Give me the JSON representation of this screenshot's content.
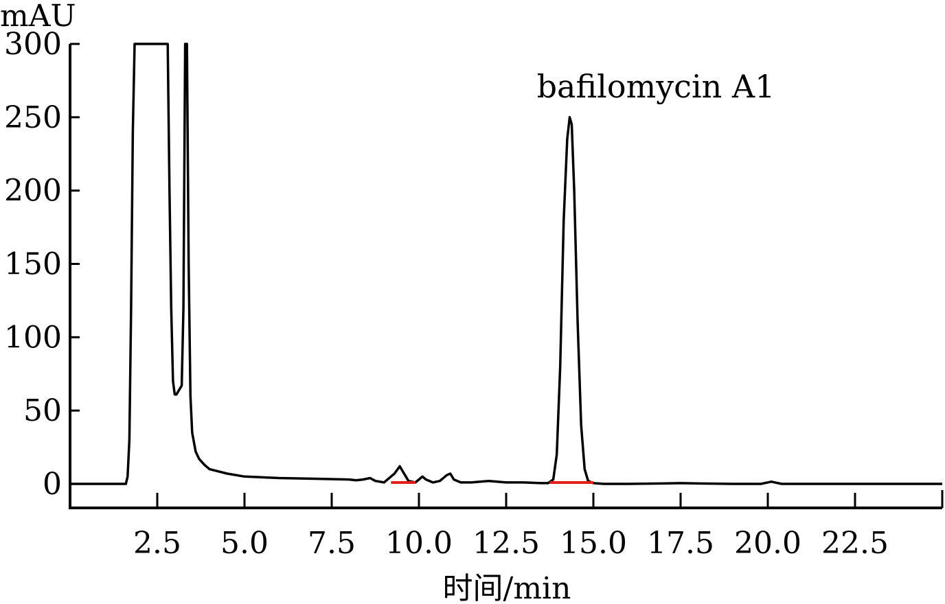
{
  "chart_data": {
    "type": "line",
    "ylabel": "mAU",
    "xlabel": "时间/min",
    "xlim": [
      0,
      25
    ],
    "ylim": [
      -8,
      300
    ],
    "x_ticks": [
      2.5,
      5.0,
      7.5,
      10.0,
      12.5,
      15.0,
      17.5,
      20.0,
      22.5
    ],
    "x_tick_labels": [
      "2.5",
      "5.0",
      "7.5",
      "10.0",
      "12.5",
      "15.0",
      "17.5",
      "20.0",
      "22.5"
    ],
    "y_ticks": [
      0,
      50,
      100,
      150,
      200,
      250,
      300
    ],
    "y_tick_labels": [
      "0",
      "50",
      "100",
      "150",
      "200",
      "250",
      "300"
    ],
    "grid": false,
    "line_color": "#000000",
    "marker_color": "#e0201b",
    "series": [
      {
        "x": [
          0,
          1.6,
          1.65,
          1.7,
          1.75,
          1.8,
          1.85,
          1.9,
          2.8,
          2.85,
          2.9,
          2.95,
          3.0,
          3.05,
          3.1,
          3.15,
          3.2,
          3.25,
          3.3,
          3.35,
          3.4,
          3.45,
          3.5,
          3.6,
          3.7,
          3.85,
          4.0,
          4.5,
          5.0,
          6.0,
          7.0,
          8.0,
          8.2,
          8.4,
          8.6,
          8.75,
          9.0,
          9.3,
          9.45,
          9.55,
          9.7,
          9.9,
          10.0,
          10.1,
          10.2,
          10.4,
          10.6,
          10.8,
          10.9,
          11.0,
          11.2,
          11.5,
          12.0,
          12.5,
          13.0,
          13.5,
          13.7,
          13.85,
          13.95,
          14.05,
          14.15,
          14.25,
          14.32,
          14.38,
          14.45,
          14.55,
          14.65,
          14.75,
          14.85,
          15.0,
          15.3,
          16.0,
          17.0,
          17.5,
          18.0,
          19.0,
          19.8,
          20.1,
          20.4,
          21.0,
          22.0,
          23.0,
          25.0
        ],
        "y": [
          0,
          0,
          5,
          30,
          120,
          240,
          300,
          300,
          300,
          200,
          120,
          70,
          61,
          61,
          63,
          65,
          67,
          120,
          300,
          300,
          150,
          60,
          35,
          22,
          17,
          13,
          10,
          7,
          5,
          4,
          3.5,
          3,
          2.5,
          3,
          4,
          2,
          1,
          7,
          12,
          8,
          2,
          1,
          3,
          5,
          3,
          1,
          2,
          6,
          7,
          3,
          1,
          1,
          2,
          1,
          1,
          0.5,
          0.5,
          3,
          20,
          80,
          180,
          235,
          250,
          245,
          200,
          110,
          40,
          10,
          2,
          0.5,
          0,
          0,
          0.3,
          0.5,
          0.3,
          0,
          0,
          1.5,
          0,
          0,
          0,
          0,
          0
        ]
      }
    ],
    "annotations": [
      {
        "text": "bafilomycin A1",
        "x": 14.25,
        "y": 270
      }
    ],
    "integration_marks": [
      {
        "x_start": 9.2,
        "x_end": 9.9,
        "y": 1
      },
      {
        "x_start": 13.75,
        "x_end": 15.0,
        "y": 0.5
      }
    ]
  }
}
